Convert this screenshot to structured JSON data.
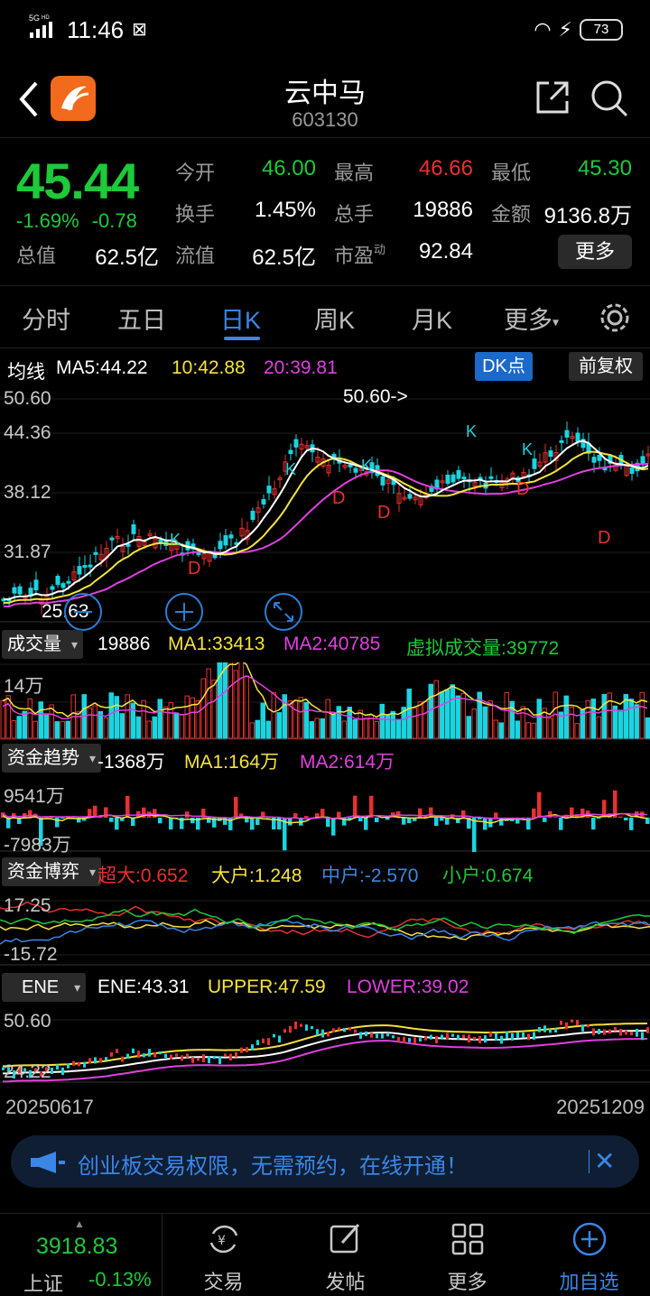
{
  "status_bar": {
    "network": "5G HD",
    "time": "11:46",
    "battery": "73"
  },
  "header": {
    "title": "云中马",
    "code": "603130"
  },
  "quote": {
    "price": "45.44",
    "change_pct": "-1.69%",
    "change_abs": "-0.78",
    "fields": [
      {
        "label": "今开",
        "value": "46.00",
        "color": "green"
      },
      {
        "label": "最高",
        "value": "46.66",
        "color": "red"
      },
      {
        "label": "最低",
        "value": "45.30",
        "color": "green"
      },
      {
        "label": "换手",
        "value": "1.45%",
        "color": "white"
      },
      {
        "label": "总手",
        "value": "19886",
        "color": "white"
      },
      {
        "label": "金额",
        "value": "9136.8万",
        "color": "white"
      },
      {
        "label": "总值",
        "value": "62.5亿",
        "color": "white"
      },
      {
        "label": "流值",
        "value": "62.5亿",
        "color": "white"
      },
      {
        "label": "市盈",
        "value": "92.84",
        "color": "white"
      }
    ],
    "pe_sup": "动",
    "more_button": "更多"
  },
  "tabs": [
    "分时",
    "五日",
    "日K",
    "周K",
    "月K",
    "更多"
  ],
  "active_tab": "日K",
  "kline": {
    "ma_title": "均线",
    "ma5": "MA5:44.22",
    "ma10": "10:42.88",
    "ma20": "20:39.81",
    "dk_button": "DK点",
    "adjust_button": "前复权",
    "y_labels": [
      "50.60",
      "44.36",
      "38.12",
      "31.87"
    ],
    "low_label": "25.63",
    "high_marker": "50.60->",
    "k_marks": [
      "K",
      "K",
      "K",
      "K",
      "K"
    ],
    "d_marks": [
      "D",
      "D",
      "D",
      "D",
      "D"
    ]
  },
  "volume": {
    "button": "成交量",
    "value": "19886",
    "ma1": "MA1:33413",
    "ma2": "MA2:40785",
    "virtual": "虚拟成交量:39772",
    "y_label": "14万"
  },
  "capital_trend": {
    "button": "资金趋势",
    "value": "-1368万",
    "ma1": "MA1:164万",
    "ma2": "MA2:614万",
    "y_top": "9541万",
    "y_bottom": "-7983万"
  },
  "capital_game": {
    "button": "资金博弈",
    "super_large": "超大:0.652",
    "large": "大户:1.248",
    "medium": "中户:-2.570",
    "small": "小户:0.674",
    "y_top": "17.25",
    "y_bottom": "-15.72"
  },
  "ene": {
    "button": "ENE",
    "ene": "ENE:43.31",
    "upper": "UPPER:47.59",
    "lower": "LOWER:39.02",
    "y_top": "50.60",
    "y_bottom": "24.22"
  },
  "dates": {
    "start": "20250617",
    "end": "20251209"
  },
  "banner": {
    "text": "创业板交易权限，无需预约，在线开通！"
  },
  "bottom_bar": {
    "index_value": "3918.83",
    "index_name": "上证",
    "index_change": "-0.13%",
    "items": [
      "交易",
      "发帖",
      "更多",
      "加自选"
    ]
  },
  "colors": {
    "up": "#e8302f",
    "down": "#1ec93a",
    "accent": "#3b86e6",
    "cyan": "#1ad4e0",
    "magenta": "#e040e0",
    "yellow": "#f5e33b"
  }
}
